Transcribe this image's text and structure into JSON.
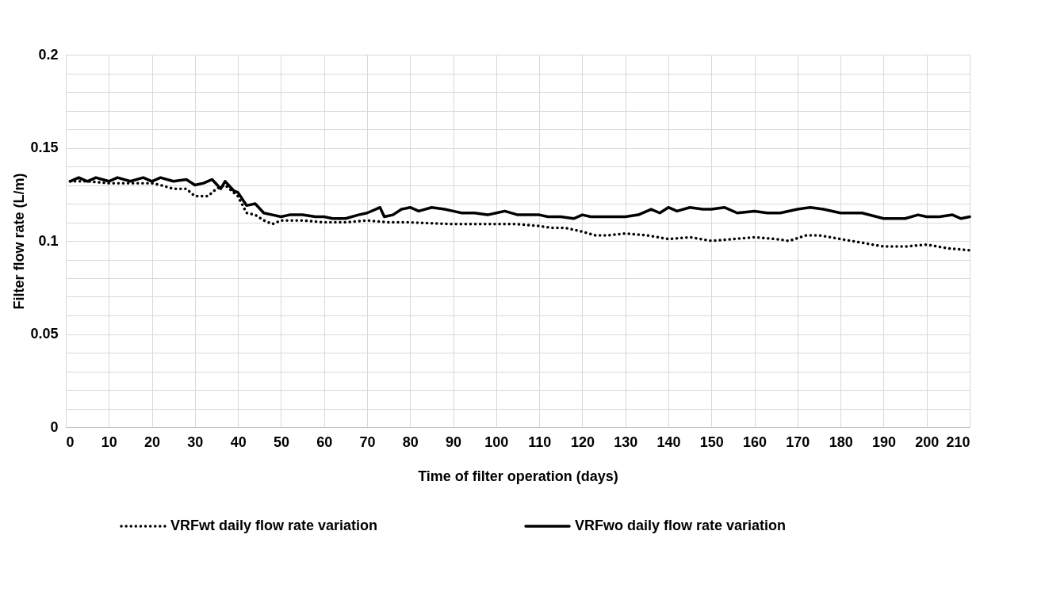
{
  "chart_data": {
    "type": "line",
    "xlabel": "Time of  filter operation (days)",
    "ylabel": "Filter flow rate (L/m)",
    "xlim": [
      0,
      210
    ],
    "xticks": [
      0,
      10,
      20,
      30,
      40,
      50,
      60,
      70,
      80,
      90,
      100,
      110,
      120,
      130,
      140,
      150,
      160,
      170,
      180,
      190,
      200,
      210
    ],
    "ylim": [
      0,
      0.2
    ],
    "yticks": [
      0,
      {
        "value": 0.01,
        "label": null
      },
      {
        "value": 0.02,
        "label": null
      },
      {
        "value": 0.03,
        "label": null
      },
      {
        "value": 0.04,
        "label": null
      },
      0.05,
      {
        "value": 0.06,
        "label": null
      },
      {
        "value": 0.07,
        "label": null
      },
      {
        "value": 0.08,
        "label": null
      },
      {
        "value": 0.09,
        "label": null
      },
      0.1,
      {
        "value": 0.11,
        "label": null
      },
      {
        "value": 0.12,
        "label": null
      },
      {
        "value": 0.13,
        "label": null
      },
      {
        "value": 0.14,
        "label": null
      },
      0.15,
      {
        "value": 0.16,
        "label": null
      },
      {
        "value": 0.17,
        "label": null
      },
      {
        "value": 0.18,
        "label": null
      },
      {
        "value": 0.19,
        "label": null
      },
      0.2
    ],
    "grid": true,
    "legend": "bottom",
    "marker": "none",
    "series": [
      {
        "name": "VRFwt daily flow rate variation",
        "color": "#000000",
        "line_style": "dotted",
        "x": [
          1,
          5,
          10,
          15,
          20,
          22,
          25,
          28,
          30,
          33,
          35,
          37,
          40,
          42,
          44,
          46,
          48,
          50,
          55,
          60,
          65,
          70,
          75,
          80,
          90,
          100,
          105,
          110,
          113,
          116,
          120,
          123,
          126,
          130,
          135,
          140,
          145,
          150,
          155,
          160,
          165,
          168,
          172,
          175,
          180,
          185,
          190,
          195,
          200,
          205,
          210
        ],
        "values": [
          0.132,
          0.132,
          0.131,
          0.131,
          0.131,
          0.13,
          0.128,
          0.128,
          0.124,
          0.124,
          0.128,
          0.13,
          0.124,
          0.115,
          0.114,
          0.111,
          0.109,
          0.111,
          0.111,
          0.11,
          0.11,
          0.111,
          0.11,
          0.11,
          0.109,
          0.109,
          0.109,
          0.108,
          0.107,
          0.107,
          0.105,
          0.103,
          0.103,
          0.104,
          0.103,
          0.101,
          0.102,
          0.1,
          0.101,
          0.102,
          0.101,
          0.1,
          0.103,
          0.103,
          0.101,
          0.099,
          0.097,
          0.097,
          0.098,
          0.096,
          0.095
        ]
      },
      {
        "name": "VRFwo daily flow rate variation",
        "color": "#000000",
        "line_style": "solid",
        "x": [
          1,
          3,
          5,
          7,
          10,
          12,
          15,
          18,
          20,
          22,
          25,
          28,
          30,
          32,
          34,
          36,
          37,
          39,
          40,
          42,
          44,
          46,
          48,
          50,
          52,
          55,
          58,
          60,
          62,
          65,
          68,
          70,
          72,
          73,
          74,
          76,
          78,
          80,
          82,
          85,
          88,
          90,
          92,
          95,
          98,
          100,
          102,
          105,
          110,
          112,
          115,
          118,
          120,
          122,
          125,
          130,
          133,
          136,
          138,
          140,
          142,
          145,
          148,
          150,
          153,
          156,
          160,
          163,
          166,
          170,
          173,
          176,
          180,
          185,
          190,
          195,
          198,
          200,
          203,
          206,
          208,
          210
        ],
        "values": [
          0.132,
          0.134,
          0.132,
          0.134,
          0.132,
          0.134,
          0.132,
          0.134,
          0.132,
          0.134,
          0.132,
          0.133,
          0.13,
          0.131,
          0.133,
          0.128,
          0.132,
          0.127,
          0.126,
          0.119,
          0.12,
          0.115,
          0.114,
          0.113,
          0.114,
          0.114,
          0.113,
          0.113,
          0.112,
          0.112,
          0.114,
          0.115,
          0.117,
          0.118,
          0.113,
          0.114,
          0.117,
          0.118,
          0.116,
          0.118,
          0.117,
          0.116,
          0.115,
          0.115,
          0.114,
          0.115,
          0.116,
          0.114,
          0.114,
          0.113,
          0.113,
          0.112,
          0.114,
          0.113,
          0.113,
          0.113,
          0.114,
          0.117,
          0.115,
          0.118,
          0.116,
          0.118,
          0.117,
          0.117,
          0.118,
          0.115,
          0.116,
          0.115,
          0.115,
          0.117,
          0.118,
          0.117,
          0.115,
          0.115,
          0.112,
          0.112,
          0.114,
          0.113,
          0.113,
          0.114,
          0.112,
          0.113
        ]
      }
    ]
  }
}
